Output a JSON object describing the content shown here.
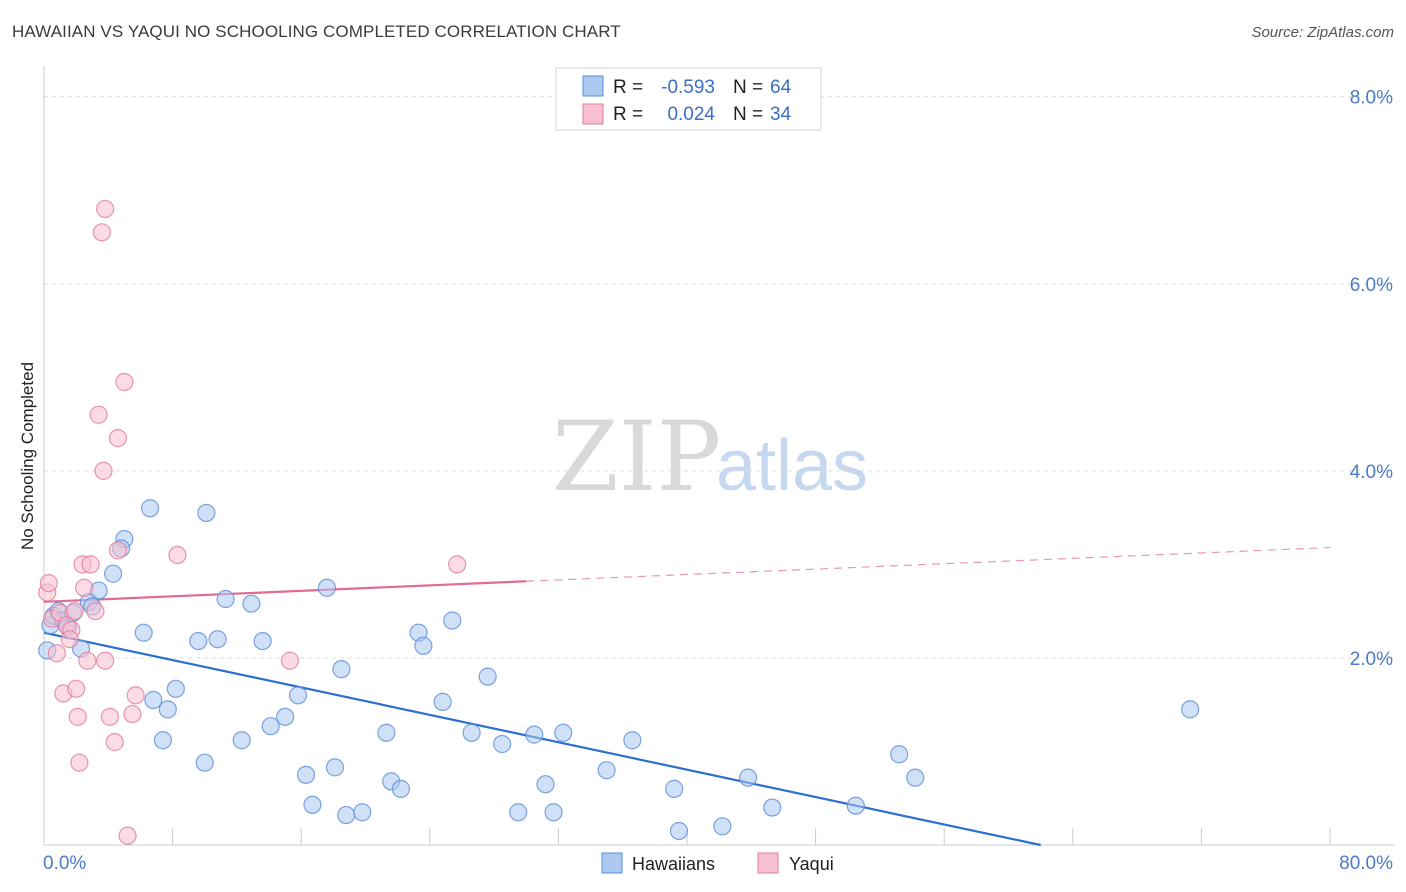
{
  "title": "HAWAIIAN VS YAQUI NO SCHOOLING COMPLETED CORRELATION CHART",
  "source": "Source: ZipAtlas.com",
  "watermark": {
    "part1": "ZIP",
    "part2": "atlas"
  },
  "colors": {
    "hawaiians_fill": "#aac8f0",
    "hawaiians_stroke": "#5b8fd8",
    "hawaiians_line": "#2c6fd1",
    "yaqui_fill": "#f7bfd0",
    "yaqui_stroke": "#e27c9c",
    "yaqui_line": "#e26a93",
    "tick": "#4a7cc9",
    "grid": "#dcdcdc"
  },
  "legend": {
    "rows": [
      {
        "r_label": "R =",
        "r_value": "-0.593",
        "n_label": "N =",
        "n_value": "64"
      },
      {
        "r_label": "R =",
        "r_value": "0.024",
        "n_label": "N =",
        "n_value": "34"
      }
    ],
    "bottom": [
      "Hawaiians",
      "Yaqui"
    ]
  },
  "chart_data": {
    "type": "scatter",
    "title": "HAWAIIAN VS YAQUI NO SCHOOLING COMPLETED CORRELATION CHART",
    "xlabel": "",
    "ylabel": "No Schooling Completed",
    "xlim": [
      0,
      80
    ],
    "ylim": [
      0,
      8.2
    ],
    "x_tick_labels": [
      "0.0%",
      "80.0%"
    ],
    "y_ticks": [
      2,
      4,
      6,
      8
    ],
    "y_tick_labels": [
      "2.0%",
      "4.0%",
      "6.0%",
      "8.0%"
    ],
    "series": [
      {
        "name": "Hawaiians",
        "r": -0.593,
        "n": 64,
        "trend": {
          "x0": 0,
          "y0": 2.27,
          "x1": 62,
          "y1": 0.0
        },
        "points": [
          [
            0.2,
            2.08
          ],
          [
            0.4,
            2.35
          ],
          [
            0.6,
            2.45
          ],
          [
            0.9,
            2.5
          ],
          [
            1.2,
            2.4
          ],
          [
            1.5,
            2.33
          ],
          [
            1.8,
            2.48
          ],
          [
            2.3,
            2.1
          ],
          [
            2.8,
            2.6
          ],
          [
            3.0,
            2.55
          ],
          [
            3.4,
            2.72
          ],
          [
            4.3,
            2.9
          ],
          [
            5.0,
            3.27
          ],
          [
            4.8,
            3.17
          ],
          [
            6.2,
            2.27
          ],
          [
            6.6,
            3.6
          ],
          [
            6.8,
            1.55
          ],
          [
            7.7,
            1.45
          ],
          [
            8.2,
            1.67
          ],
          [
            9.6,
            2.18
          ],
          [
            10.1,
            3.55
          ],
          [
            10.8,
            2.2
          ],
          [
            11.3,
            2.63
          ],
          [
            12.9,
            2.58
          ],
          [
            13.6,
            2.18
          ],
          [
            12.3,
            1.12
          ],
          [
            14.1,
            1.27
          ],
          [
            15.0,
            1.37
          ],
          [
            15.8,
            1.6
          ],
          [
            16.3,
            0.75
          ],
          [
            16.7,
            0.43
          ],
          [
            17.6,
            2.75
          ],
          [
            18.1,
            0.83
          ],
          [
            18.8,
            0.32
          ],
          [
            18.5,
            1.88
          ],
          [
            19.8,
            0.35
          ],
          [
            21.3,
            1.2
          ],
          [
            21.6,
            0.68
          ],
          [
            22.2,
            0.6
          ],
          [
            23.3,
            2.27
          ],
          [
            23.6,
            2.13
          ],
          [
            24.8,
            1.53
          ],
          [
            25.4,
            2.4
          ],
          [
            26.6,
            1.2
          ],
          [
            27.6,
            1.8
          ],
          [
            28.5,
            1.08
          ],
          [
            29.5,
            0.35
          ],
          [
            30.5,
            1.18
          ],
          [
            31.2,
            0.65
          ],
          [
            31.7,
            0.35
          ],
          [
            32.3,
            1.2
          ],
          [
            35.0,
            0.8
          ],
          [
            36.6,
            1.12
          ],
          [
            39.2,
            0.6
          ],
          [
            39.5,
            0.15
          ],
          [
            42.2,
            0.2
          ],
          [
            43.8,
            0.72
          ],
          [
            45.3,
            0.4
          ],
          [
            50.5,
            0.42
          ],
          [
            53.2,
            0.97
          ],
          [
            54.2,
            0.72
          ],
          [
            71.3,
            1.45
          ],
          [
            10.0,
            0.88
          ],
          [
            7.4,
            1.12
          ]
        ]
      },
      {
        "name": "Yaqui",
        "r": 0.024,
        "n": 34,
        "trend": {
          "x0": 0,
          "y0": 2.6,
          "x1": 30,
          "y1": 2.82
        },
        "trend_dashed": {
          "x0": 30,
          "y0": 2.82,
          "x1": 80,
          "y1": 3.18
        },
        "points": [
          [
            0.2,
            2.7
          ],
          [
            0.3,
            2.8
          ],
          [
            0.5,
            2.42
          ],
          [
            0.8,
            2.05
          ],
          [
            1.0,
            2.48
          ],
          [
            1.2,
            1.62
          ],
          [
            1.4,
            2.35
          ],
          [
            1.7,
            2.3
          ],
          [
            1.9,
            2.5
          ],
          [
            2.0,
            1.67
          ],
          [
            2.1,
            1.37
          ],
          [
            2.2,
            0.88
          ],
          [
            2.4,
            3.0
          ],
          [
            2.5,
            2.75
          ],
          [
            2.7,
            1.97
          ],
          [
            2.9,
            3.0
          ],
          [
            3.2,
            2.5
          ],
          [
            3.4,
            4.6
          ],
          [
            3.8,
            1.97
          ],
          [
            3.6,
            6.55
          ],
          [
            3.8,
            6.8
          ],
          [
            4.1,
            1.37
          ],
          [
            4.4,
            1.1
          ],
          [
            4.6,
            4.35
          ],
          [
            4.6,
            3.15
          ],
          [
            5.0,
            4.95
          ],
          [
            5.2,
            0.1
          ],
          [
            5.5,
            1.4
          ],
          [
            5.7,
            1.6
          ],
          [
            8.3,
            3.1
          ],
          [
            3.7,
            4.0
          ],
          [
            15.3,
            1.97
          ],
          [
            25.7,
            3.0
          ],
          [
            1.6,
            2.2
          ]
        ]
      }
    ]
  }
}
